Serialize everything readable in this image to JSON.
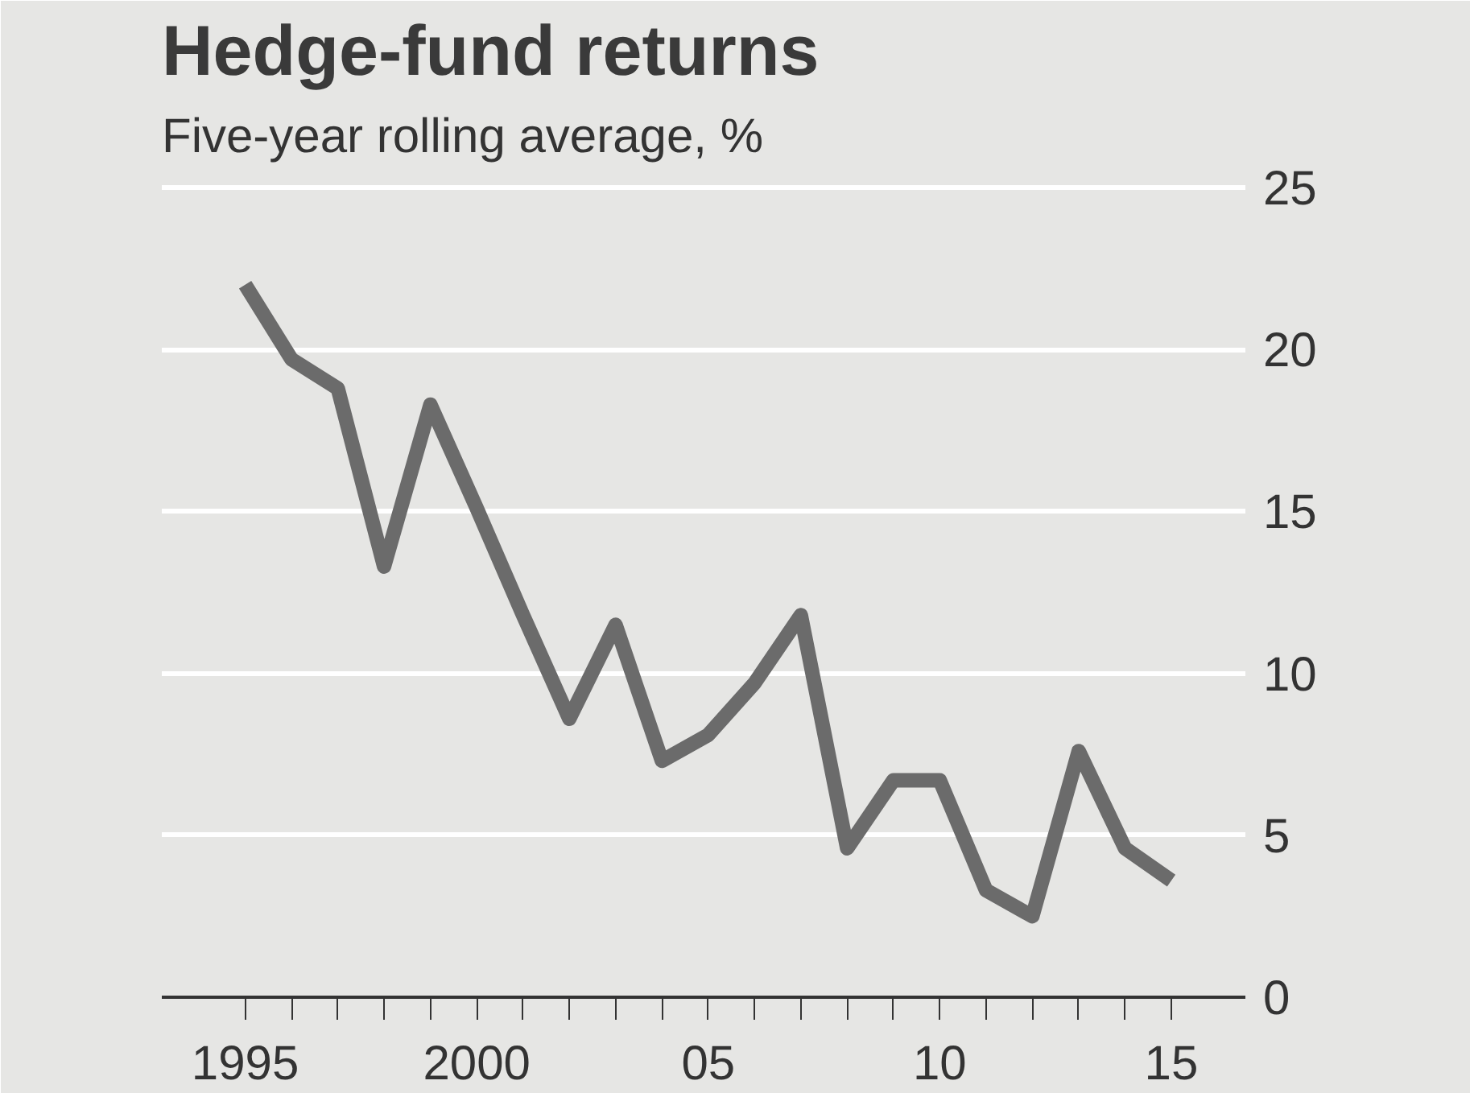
{
  "chart_data": {
    "type": "line",
    "title": "Hedge-fund returns",
    "subtitle": "Five-year rolling average, %",
    "x": [
      1995,
      1996,
      1997,
      1998,
      1999,
      2000,
      2001,
      2002,
      2003,
      2004,
      2005,
      2006,
      2007,
      2008,
      2009,
      2010,
      2011,
      2012,
      2013,
      2014,
      2015
    ],
    "series": [
      {
        "color": "#6b6b6b",
        "values": [
          22.0,
          19.7,
          18.8,
          13.3,
          18.3,
          15.1,
          11.8,
          8.6,
          11.5,
          7.3,
          8.1,
          9.7,
          11.8,
          4.6,
          6.7,
          6.7,
          3.3,
          2.5,
          7.6,
          4.6,
          3.6
        ]
      }
    ],
    "xlim": [
      1993.2,
      2016.6
    ],
    "ylim": [
      0,
      25.5
    ],
    "xticks": [
      {
        "value": 1995,
        "label": "1995"
      },
      {
        "value": 1996,
        "label": null
      },
      {
        "value": 1997,
        "label": null
      },
      {
        "value": 1998,
        "label": null
      },
      {
        "value": 1999,
        "label": null
      },
      {
        "value": 2000,
        "label": "2000"
      },
      {
        "value": 2001,
        "label": null
      },
      {
        "value": 2002,
        "label": null
      },
      {
        "value": 2003,
        "label": null
      },
      {
        "value": 2004,
        "label": null
      },
      {
        "value": 2005,
        "label": "05"
      },
      {
        "value": 2006,
        "label": null
      },
      {
        "value": 2007,
        "label": null
      },
      {
        "value": 2008,
        "label": null
      },
      {
        "value": 2009,
        "label": null
      },
      {
        "value": 2010,
        "label": "10"
      },
      {
        "value": 2011,
        "label": null
      },
      {
        "value": 2012,
        "label": null
      },
      {
        "value": 2013,
        "label": null
      },
      {
        "value": 2014,
        "label": null
      },
      {
        "value": 2015,
        "label": "15"
      }
    ],
    "yticks": [
      0,
      5,
      10,
      15,
      20,
      25
    ],
    "grid": "y",
    "line_style": "solid",
    "marker": "none"
  }
}
